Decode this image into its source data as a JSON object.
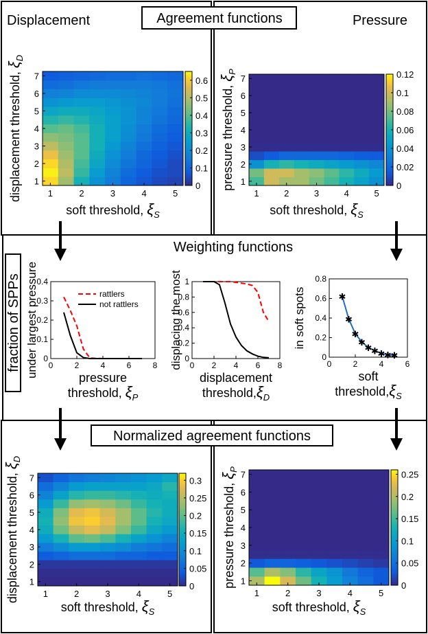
{
  "titles": {
    "agreement": "Agreement functions",
    "displacement": "Displacement",
    "pressure": "Pressure",
    "weighting": "Weighting functions",
    "normalized": "Normalized agreement functions",
    "fraction_spps": "fraction of SPPs"
  },
  "colors": {
    "frame": "#000000",
    "rattlers": "#ff0000",
    "not_rattlers": "#000000",
    "soft_curve": "#1f6fbf"
  },
  "chart_data": [
    {
      "id": "disp-agree",
      "type": "heatmap",
      "xlabel_text": "soft threshold, ",
      "xlabel_symbol": "ξ",
      "xlabel_sub": "S",
      "ylabel_text": "displacement threshold, ",
      "ylabel_symbol": "ξ",
      "ylabel_sub": "D",
      "x": [
        1.0,
        1.5,
        2.0,
        2.5,
        3.0,
        3.5,
        4.0,
        4.5,
        5.0
      ],
      "y": [
        1.0,
        1.5,
        2.0,
        2.5,
        3.0,
        3.5,
        4.0,
        4.5,
        5.0,
        5.5,
        6.0,
        6.5,
        7.0
      ],
      "x_ticks": [
        1,
        2,
        3,
        4,
        5
      ],
      "y_ticks": [
        1,
        2,
        3,
        4,
        5,
        6,
        7
      ],
      "clim": [
        0,
        0.65
      ],
      "colorbar_ticks": [
        0,
        0.1,
        0.2,
        0.3,
        0.4,
        0.5,
        0.6
      ],
      "values": [
        [
          0.62,
          0.48,
          0.32,
          0.22,
          0.16,
          0.1,
          0.07,
          0.05,
          0.04
        ],
        [
          0.64,
          0.52,
          0.36,
          0.25,
          0.18,
          0.12,
          0.08,
          0.06,
          0.05
        ],
        [
          0.62,
          0.5,
          0.38,
          0.28,
          0.2,
          0.14,
          0.1,
          0.07,
          0.05
        ],
        [
          0.58,
          0.48,
          0.4,
          0.3,
          0.22,
          0.16,
          0.11,
          0.08,
          0.06
        ],
        [
          0.52,
          0.46,
          0.4,
          0.32,
          0.24,
          0.18,
          0.13,
          0.09,
          0.07
        ],
        [
          0.46,
          0.44,
          0.4,
          0.32,
          0.26,
          0.2,
          0.15,
          0.11,
          0.08
        ],
        [
          0.4,
          0.42,
          0.38,
          0.32,
          0.26,
          0.21,
          0.16,
          0.12,
          0.09
        ],
        [
          0.34,
          0.36,
          0.34,
          0.3,
          0.26,
          0.22,
          0.18,
          0.14,
          0.11
        ],
        [
          0.28,
          0.3,
          0.3,
          0.28,
          0.25,
          0.22,
          0.18,
          0.15,
          0.12
        ],
        [
          0.22,
          0.24,
          0.25,
          0.25,
          0.23,
          0.21,
          0.19,
          0.16,
          0.13
        ],
        [
          0.17,
          0.18,
          0.2,
          0.2,
          0.2,
          0.19,
          0.18,
          0.16,
          0.14
        ],
        [
          0.12,
          0.13,
          0.15,
          0.16,
          0.16,
          0.16,
          0.16,
          0.15,
          0.13
        ],
        [
          0.08,
          0.09,
          0.1,
          0.11,
          0.12,
          0.12,
          0.13,
          0.12,
          0.11
        ]
      ]
    },
    {
      "id": "press-agree",
      "type": "heatmap",
      "xlabel_text": "soft threshold, ",
      "xlabel_symbol": "ξ",
      "xlabel_sub": "S",
      "ylabel_text": "pressure threshold, ",
      "ylabel_symbol": "ξ",
      "ylabel_sub": "P",
      "x": [
        1.0,
        1.5,
        2.0,
        2.5,
        3.0,
        3.5,
        4.0,
        4.5,
        5.0
      ],
      "y": [
        1.0,
        1.5,
        2.0,
        2.5,
        3.0,
        3.5,
        4.0,
        4.5,
        5.0,
        5.5,
        6.0,
        6.5,
        7.0
      ],
      "x_ticks": [
        1,
        2,
        3,
        4,
        5
      ],
      "y_ticks": [
        1,
        2,
        3,
        4,
        5,
        6,
        7
      ],
      "clim": [
        0,
        0.12
      ],
      "colorbar_ticks": [
        0,
        0.02,
        0.04,
        0.06,
        0.08,
        0.1,
        0.12
      ],
      "values": [
        [
          0.07,
          0.1,
          0.09,
          0.09,
          0.08,
          0.07,
          0.06,
          0.05,
          0.04
        ],
        [
          0.08,
          0.1,
          0.1,
          0.09,
          0.085,
          0.075,
          0.065,
          0.055,
          0.045
        ],
        [
          0.04,
          0.06,
          0.065,
          0.06,
          0.055,
          0.05,
          0.045,
          0.04,
          0.035
        ],
        [
          0.01,
          0.015,
          0.02,
          0.02,
          0.02,
          0.02,
          0.018,
          0.016,
          0.015
        ],
        [
          0.001,
          0.001,
          0.001,
          0.001,
          0.001,
          0.001,
          0.001,
          0.001,
          0.001
        ],
        [
          0,
          0,
          0,
          0,
          0,
          0,
          0,
          0,
          0
        ],
        [
          0,
          0,
          0,
          0,
          0,
          0,
          0,
          0,
          0
        ],
        [
          0,
          0,
          0,
          0,
          0,
          0,
          0,
          0,
          0
        ],
        [
          0,
          0,
          0,
          0,
          0,
          0,
          0,
          0,
          0
        ],
        [
          0,
          0,
          0,
          0,
          0,
          0,
          0,
          0,
          0
        ],
        [
          0,
          0,
          0,
          0,
          0,
          0,
          0,
          0,
          0
        ],
        [
          0,
          0,
          0,
          0,
          0,
          0,
          0,
          0,
          0
        ],
        [
          0,
          0,
          0,
          0,
          0,
          0,
          0,
          0,
          0
        ]
      ]
    },
    {
      "id": "weight-pressure",
      "type": "line",
      "xlabel": "pressure",
      "xlabel2_text": "threshold, ",
      "xlabel2_symbol": "ξ",
      "xlabel2_sub": "P",
      "ylabel": "under largest pressure",
      "xlim": [
        0,
        8
      ],
      "ylim": [
        0,
        0.4
      ],
      "x_ticks": [
        0,
        2,
        4,
        6,
        8
      ],
      "y_ticks": [
        0,
        0.1,
        0.2,
        0.3,
        0.4
      ],
      "legend": [
        "rattlers",
        "not rattlers"
      ],
      "series": [
        {
          "name": "rattlers",
          "style": "dashed",
          "x": [
            1,
            1.5,
            2,
            2.5,
            3,
            4,
            5,
            6,
            7
          ],
          "y": [
            0.32,
            0.25,
            0.17,
            0.05,
            0.003,
            0,
            0,
            0,
            0
          ]
        },
        {
          "name": "not rattlers",
          "style": "solid",
          "x": [
            1,
            1.5,
            2,
            2.5,
            3,
            4,
            5,
            6,
            7
          ],
          "y": [
            0.24,
            0.12,
            0.03,
            0.005,
            0,
            0,
            0,
            0,
            0
          ]
        }
      ]
    },
    {
      "id": "weight-displacement",
      "type": "line",
      "xlabel": "displacement",
      "xlabel2_text": "threshold,",
      "xlabel2_symbol": "ξ",
      "xlabel2_sub": "D",
      "ylabel": "displacing the most",
      "xlim": [
        0,
        8
      ],
      "ylim": [
        0,
        1
      ],
      "x_ticks": [
        0,
        2,
        4,
        6,
        8
      ],
      "y_ticks": [
        0,
        0.2,
        0.4,
        0.6,
        0.8,
        1
      ],
      "series": [
        {
          "name": "rattlers",
          "style": "dashed",
          "x": [
            1,
            1.5,
            2,
            2.5,
            3,
            3.5,
            4,
            4.5,
            5,
            5.5,
            6,
            6.5,
            7
          ],
          "y": [
            1,
            1,
            1,
            1,
            1,
            1,
            0.99,
            0.98,
            0.97,
            0.95,
            0.86,
            0.6,
            0.48
          ]
        },
        {
          "name": "not rattlers",
          "style": "solid",
          "x": [
            1,
            1.5,
            2,
            2.5,
            3,
            3.5,
            4,
            4.5,
            5,
            5.5,
            6,
            6.5,
            7
          ],
          "y": [
            1,
            1,
            1,
            0.96,
            0.72,
            0.45,
            0.28,
            0.17,
            0.1,
            0.06,
            0.03,
            0.015,
            0.01
          ]
        }
      ]
    },
    {
      "id": "weight-soft",
      "type": "line",
      "xlabel": "soft",
      "xlabel2_text": "threshold,",
      "xlabel2_symbol": "ξ",
      "xlabel2_sub": "S",
      "ylabel": "in soft spots",
      "xlim": [
        0,
        6
      ],
      "ylim": [
        0,
        0.8
      ],
      "x_ticks": [
        0,
        2,
        4,
        6
      ],
      "y_ticks": [
        0,
        0.2,
        0.4,
        0.6,
        0.8
      ],
      "series": [
        {
          "name": "soft spots",
          "style": "solid-star",
          "x": [
            1,
            1.5,
            2,
            2.5,
            3,
            3.5,
            4,
            4.5,
            5
          ],
          "y": [
            0.62,
            0.39,
            0.24,
            0.155,
            0.1,
            0.065,
            0.04,
            0.025,
            0.02
          ]
        }
      ]
    },
    {
      "id": "norm-disp",
      "type": "heatmap",
      "xlabel_text": "soft threshold, ",
      "xlabel_symbol": "ξ",
      "xlabel_sub": "S",
      "ylabel_text": "displacement threshold, ",
      "ylabel_symbol": "ξ",
      "ylabel_sub": "D",
      "x": [
        1.0,
        1.5,
        2.0,
        2.5,
        3.0,
        3.5,
        4.0,
        4.5,
        5.0
      ],
      "y": [
        1.0,
        1.5,
        2.0,
        2.5,
        3.0,
        3.5,
        4.0,
        4.5,
        5.0,
        5.5,
        6.0,
        6.5,
        7.0
      ],
      "x_ticks": [
        1,
        2,
        3,
        4,
        5
      ],
      "y_ticks": [
        1,
        2,
        3,
        4,
        5,
        6,
        7
      ],
      "clim": [
        0,
        0.32
      ],
      "colorbar_ticks": [
        0,
        0.05,
        0.1,
        0.15,
        0.2,
        0.25,
        0.3
      ],
      "values": [
        [
          0.001,
          0.001,
          0.001,
          0.001,
          0.001,
          0.001,
          0.001,
          0.001,
          0.001
        ],
        [
          0.003,
          0.003,
          0.003,
          0.003,
          0.003,
          0.003,
          0.003,
          0.003,
          0.003
        ],
        [
          0.01,
          0.01,
          0.01,
          0.01,
          0.01,
          0.01,
          0.01,
          0.01,
          0.01
        ],
        [
          0.04,
          0.05,
          0.06,
          0.06,
          0.06,
          0.05,
          0.05,
          0.04,
          0.04
        ],
        [
          0.08,
          0.1,
          0.12,
          0.12,
          0.11,
          0.1,
          0.08,
          0.07,
          0.06
        ],
        [
          0.12,
          0.16,
          0.2,
          0.21,
          0.19,
          0.16,
          0.13,
          0.11,
          0.09
        ],
        [
          0.15,
          0.21,
          0.26,
          0.28,
          0.26,
          0.22,
          0.18,
          0.14,
          0.12
        ],
        [
          0.16,
          0.23,
          0.29,
          0.3,
          0.28,
          0.24,
          0.2,
          0.16,
          0.14
        ],
        [
          0.15,
          0.22,
          0.28,
          0.29,
          0.27,
          0.24,
          0.2,
          0.17,
          0.15
        ],
        [
          0.12,
          0.18,
          0.23,
          0.24,
          0.23,
          0.21,
          0.18,
          0.16,
          0.15
        ],
        [
          0.09,
          0.13,
          0.17,
          0.18,
          0.18,
          0.17,
          0.16,
          0.15,
          0.16
        ],
        [
          0.06,
          0.09,
          0.12,
          0.13,
          0.13,
          0.13,
          0.13,
          0.14,
          0.17
        ],
        [
          0.03,
          0.05,
          0.07,
          0.08,
          0.09,
          0.1,
          0.11,
          0.12,
          0.14
        ]
      ]
    },
    {
      "id": "norm-press",
      "type": "heatmap",
      "xlabel_text": "soft threshold, ",
      "xlabel_symbol": "ξ",
      "xlabel_sub": "S",
      "ylabel_text": "pressure threshold, ",
      "ylabel_symbol": "ξ",
      "ylabel_sub": "P",
      "x": [
        1.0,
        1.5,
        2.0,
        2.5,
        3.0,
        3.5,
        4.0,
        4.5,
        5.0
      ],
      "y": [
        1.0,
        1.5,
        2.0,
        2.5,
        3.0,
        3.5,
        4.0,
        4.5,
        5.0,
        5.5,
        6.0,
        6.5,
        7.0
      ],
      "x_ticks": [
        1,
        2,
        3,
        4,
        5
      ],
      "y_ticks": [
        1,
        2,
        3,
        4,
        5,
        6,
        7
      ],
      "clim": [
        0,
        0.26
      ],
      "colorbar_ticks": [
        0,
        0.05,
        0.1,
        0.15,
        0.2,
        0.25
      ],
      "values": [
        [
          0.2,
          0.26,
          0.22,
          0.17,
          0.13,
          0.1,
          0.07,
          0.05,
          0.03
        ],
        [
          0.16,
          0.2,
          0.18,
          0.14,
          0.11,
          0.09,
          0.06,
          0.04,
          0.03
        ],
        [
          0.03,
          0.04,
          0.04,
          0.035,
          0.03,
          0.025,
          0.02,
          0.015,
          0.01
        ],
        [
          0.002,
          0.002,
          0.002,
          0.002,
          0.002,
          0.002,
          0.002,
          0.002,
          0.002
        ],
        [
          0,
          0,
          0,
          0,
          0,
          0,
          0,
          0,
          0
        ],
        [
          0,
          0,
          0,
          0,
          0,
          0,
          0,
          0,
          0
        ],
        [
          0,
          0,
          0,
          0,
          0,
          0,
          0,
          0,
          0
        ],
        [
          0,
          0,
          0,
          0,
          0,
          0,
          0,
          0,
          0
        ],
        [
          0,
          0,
          0,
          0,
          0,
          0,
          0,
          0,
          0
        ],
        [
          0,
          0,
          0,
          0,
          0,
          0,
          0,
          0,
          0
        ],
        [
          0,
          0,
          0,
          0,
          0,
          0,
          0,
          0,
          0
        ],
        [
          0,
          0,
          0,
          0,
          0,
          0,
          0,
          0,
          0
        ],
        [
          0,
          0,
          0,
          0,
          0,
          0,
          0,
          0,
          0
        ]
      ]
    }
  ]
}
